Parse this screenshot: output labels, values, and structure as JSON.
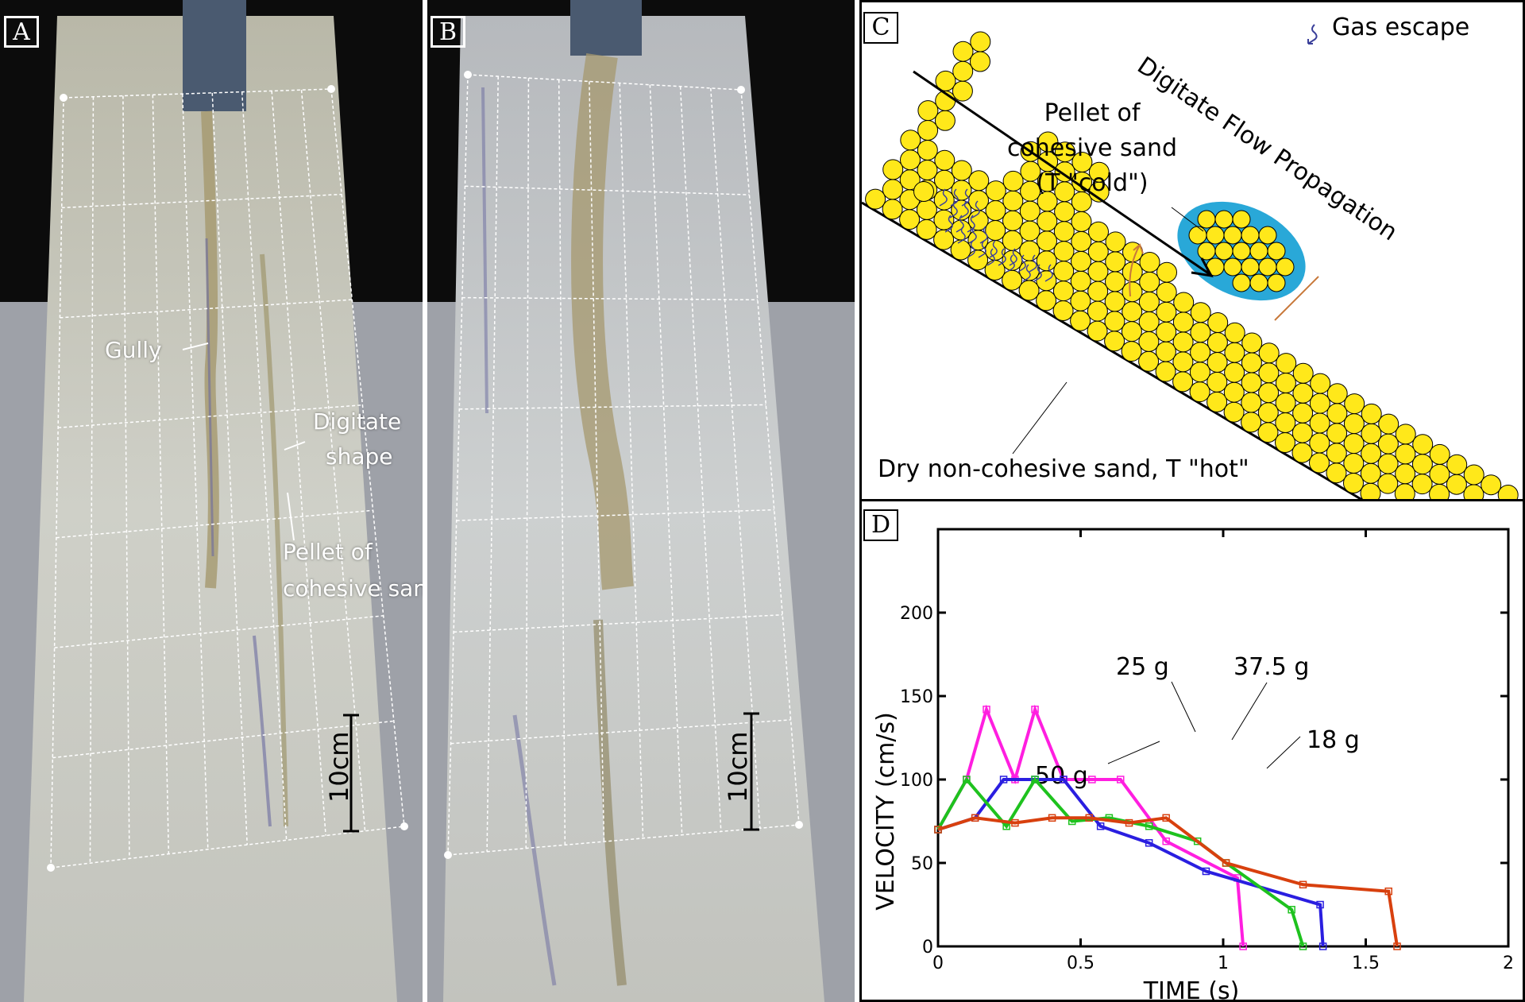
{
  "panels": {
    "a": {
      "label": "A",
      "annotations": {
        "gully": "Gully",
        "digitate_1": "Digitate",
        "digitate_2": "shape",
        "pellet_1": "Pellet of",
        "pellet_2": "cohesive sand"
      },
      "scale_bar": "10cm"
    },
    "b": {
      "label": "B",
      "scale_bar": "10cm"
    },
    "c": {
      "label": "C",
      "legend": {
        "icon": "gas-escape-squiggle-icon",
        "text": "Gas escape"
      },
      "flow_direction": "Digitate Flow Propagation",
      "pellet_1": "Pellet of",
      "pellet_2": "cohesive sand",
      "pellet_3": "(T \"cold\")",
      "substrate": "Dry non-cohesive sand, T \"hot\"",
      "colors": {
        "grain": "#ffe81a",
        "pellet": "#29a8d8",
        "gas": "#3a3f9a",
        "trajectory": "#c8783a"
      }
    },
    "d": {
      "label": "D"
    }
  },
  "chart_data": {
    "type": "line",
    "title": "",
    "xlabel": "TIME (s)",
    "ylabel": "VELOCITY (cm/s)",
    "xlim": [
      0,
      2
    ],
    "ylim": [
      0,
      250
    ],
    "xticks": [
      "0",
      "0.5",
      "1",
      "1.5",
      "2"
    ],
    "yticks": [
      "0",
      "50",
      "100",
      "150",
      "200"
    ],
    "grid": false,
    "series": [
      {
        "name": "50 g",
        "color": "#ff1ee0",
        "marker": "square",
        "x": [
          0,
          0.1,
          0.17,
          0.27,
          0.34,
          0.44,
          0.54,
          0.64,
          0.8,
          1.05,
          1.07
        ],
        "y": [
          70,
          100,
          142,
          100,
          142,
          100,
          100,
          100,
          63,
          41,
          0
        ]
      },
      {
        "name": "37.5 g",
        "color": "#2a1ee0",
        "marker": "star",
        "x": [
          0,
          0.13,
          0.23,
          0.34,
          0.44,
          0.57,
          0.74,
          0.94,
          1.34,
          1.35
        ],
        "y": [
          70,
          77,
          100,
          100,
          100,
          72,
          62,
          45,
          25,
          0
        ]
      },
      {
        "name": "25 g",
        "color": "#1ec21e",
        "marker": "x",
        "x": [
          0,
          0.1,
          0.24,
          0.34,
          0.47,
          0.6,
          0.74,
          0.91,
          1.01,
          1.24,
          1.28
        ],
        "y": [
          70,
          100,
          72,
          100,
          75,
          77,
          72,
          63,
          50,
          22,
          0
        ]
      },
      {
        "name": "18 g",
        "color": "#d8400e",
        "marker": "plus",
        "x": [
          0,
          0.13,
          0.27,
          0.4,
          0.53,
          0.67,
          0.8,
          1.01,
          1.28,
          1.58,
          1.61
        ],
        "y": [
          70,
          77,
          74,
          77,
          77,
          74,
          77,
          50,
          37,
          33,
          0
        ]
      }
    ]
  }
}
